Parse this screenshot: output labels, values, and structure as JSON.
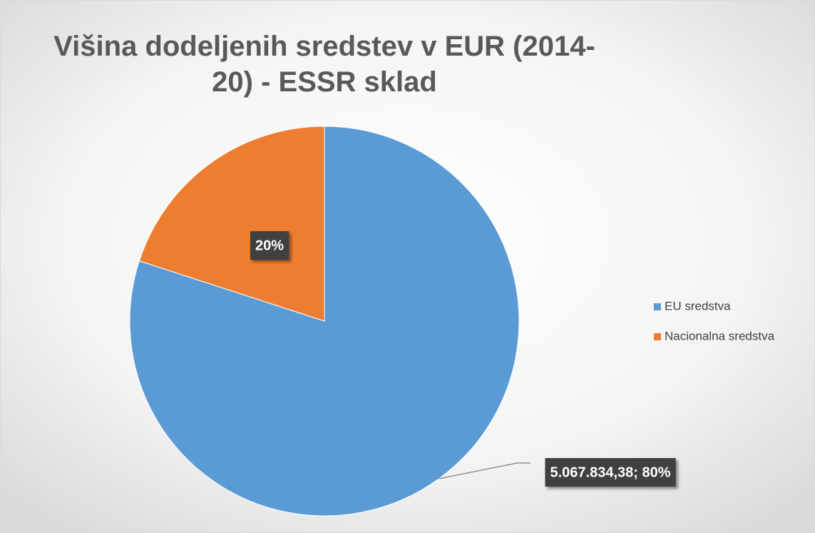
{
  "chart_data": {
    "type": "pie",
    "title": "Višina dodeljenih sredstev v EUR (2014-20) - ESSR sklad",
    "categories": [
      "EU sredstva",
      "Nacionalna sredstva"
    ],
    "values": [
      80,
      20
    ],
    "value_labels": [
      "5.067.834,38; 80%",
      "20%"
    ],
    "colors": [
      "#5b9bd5",
      "#ed7d31"
    ],
    "legend": "right"
  }
}
